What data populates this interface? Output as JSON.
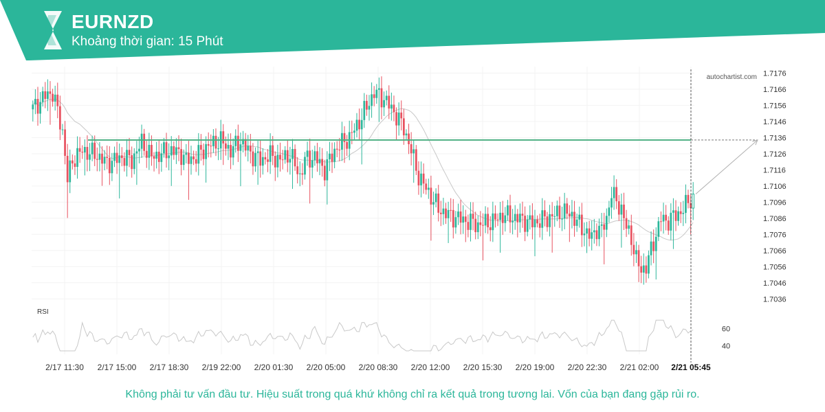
{
  "header": {
    "symbol": "EURNZD",
    "interval": "Khoảng thời gian: 15 Phút"
  },
  "watermark": "autochartist.com",
  "disclaimer": "Không phải tư vấn đầu tư. Hiệu suất trong quá khứ không chỉ ra kết quả trong tương lai. Vốn của bạn đang gặp rủi ro.",
  "colors": {
    "brand": "#2bb69a",
    "up": "#2bb69a",
    "down": "#e8515f",
    "level": "#4caf82",
    "ma": "#c8c8c8",
    "rsi": "#c8c8c8"
  },
  "chart_data": {
    "type": "candlestick",
    "title": "EURNZD",
    "price_axis": {
      "ticks": [
        "1.7176",
        "1.7166",
        "1.7156",
        "1.7146",
        "1.7136",
        "1.7126",
        "1.7116",
        "1.7106",
        "1.7096",
        "1.7086",
        "1.7076",
        "1.7066",
        "1.7056",
        "1.7046",
        "1.7036"
      ],
      "ylim": [
        1.7031,
        1.718
      ]
    },
    "x_axis": {
      "labels": [
        "2/17 11:30",
        "2/17 15:00",
        "2/17 18:30",
        "2/19 22:00",
        "2/20 01:30",
        "2/20 05:00",
        "2/20 08:30",
        "2/20 12:00",
        "2/20 15:30",
        "2/20 19:00",
        "2/20 22:30",
        "2/21 02:00",
        "2/21 05:45"
      ],
      "highlighted": "2/21 05:45"
    },
    "resistance_level": 1.71345,
    "projection": {
      "from": 1.7101,
      "to": 1.71345
    },
    "price_path": [
      [
        0,
        1.7154
      ],
      [
        5,
        1.7162
      ],
      [
        8,
        1.7164
      ],
      [
        10,
        1.7152
      ],
      [
        12,
        1.714
      ],
      [
        14,
        1.711
      ],
      [
        16,
        1.7122
      ],
      [
        20,
        1.7128
      ],
      [
        26,
        1.7125
      ],
      [
        30,
        1.712
      ],
      [
        36,
        1.7124
      ],
      [
        40,
        1.7122
      ],
      [
        44,
        1.7133
      ],
      [
        48,
        1.7124
      ],
      [
        52,
        1.7126
      ],
      [
        56,
        1.7128
      ],
      [
        60,
        1.7126
      ],
      [
        62,
        1.7122
      ],
      [
        66,
        1.7124
      ],
      [
        70,
        1.713
      ],
      [
        74,
        1.7133
      ],
      [
        76,
        1.7134
      ],
      [
        80,
        1.7128
      ],
      [
        84,
        1.7134
      ],
      [
        88,
        1.7126
      ],
      [
        92,
        1.7122
      ],
      [
        96,
        1.7125
      ],
      [
        100,
        1.7122
      ],
      [
        104,
        1.7126
      ],
      [
        108,
        1.7112
      ],
      [
        110,
        1.7122
      ],
      [
        114,
        1.7124
      ],
      [
        118,
        1.7116
      ],
      [
        122,
        1.7128
      ],
      [
        126,
        1.7134
      ],
      [
        128,
        1.7136
      ],
      [
        132,
        1.7146
      ],
      [
        136,
        1.7158
      ],
      [
        138,
        1.7164
      ],
      [
        142,
        1.716
      ],
      [
        146,
        1.7152
      ],
      [
        150,
        1.7142
      ],
      [
        153,
        1.7128
      ],
      [
        156,
        1.7112
      ],
      [
        160,
        1.7102
      ],
      [
        164,
        1.7092
      ],
      [
        168,
        1.7088
      ],
      [
        172,
        1.7086
      ],
      [
        176,
        1.7084
      ],
      [
        180,
        1.7082
      ],
      [
        186,
        1.7084
      ],
      [
        190,
        1.7088
      ],
      [
        196,
        1.7086
      ],
      [
        202,
        1.7083
      ],
      [
        208,
        1.7086
      ],
      [
        214,
        1.709
      ],
      [
        218,
        1.7088
      ],
      [
        222,
        1.708
      ],
      [
        226,
        1.7074
      ],
      [
        228,
        1.708
      ],
      [
        230,
        1.7078
      ],
      [
        232,
        1.7086
      ],
      [
        234,
        1.7102
      ],
      [
        236,
        1.7096
      ],
      [
        238,
        1.7092
      ],
      [
        240,
        1.708
      ],
      [
        242,
        1.7074
      ],
      [
        244,
        1.706
      ],
      [
        246,
        1.7054
      ],
      [
        248,
        1.7056
      ],
      [
        250,
        1.7066
      ],
      [
        252,
        1.7076
      ],
      [
        254,
        1.7086
      ],
      [
        256,
        1.7084
      ],
      [
        258,
        1.7086
      ],
      [
        260,
        1.7088
      ],
      [
        262,
        1.709
      ],
      [
        264,
        1.7094
      ],
      [
        266,
        1.7098
      ],
      [
        267,
        1.7101
      ]
    ],
    "rsi": {
      "label": "RSI",
      "ticks": [
        "60",
        "40"
      ],
      "ylim": [
        30,
        75
      ]
    }
  }
}
